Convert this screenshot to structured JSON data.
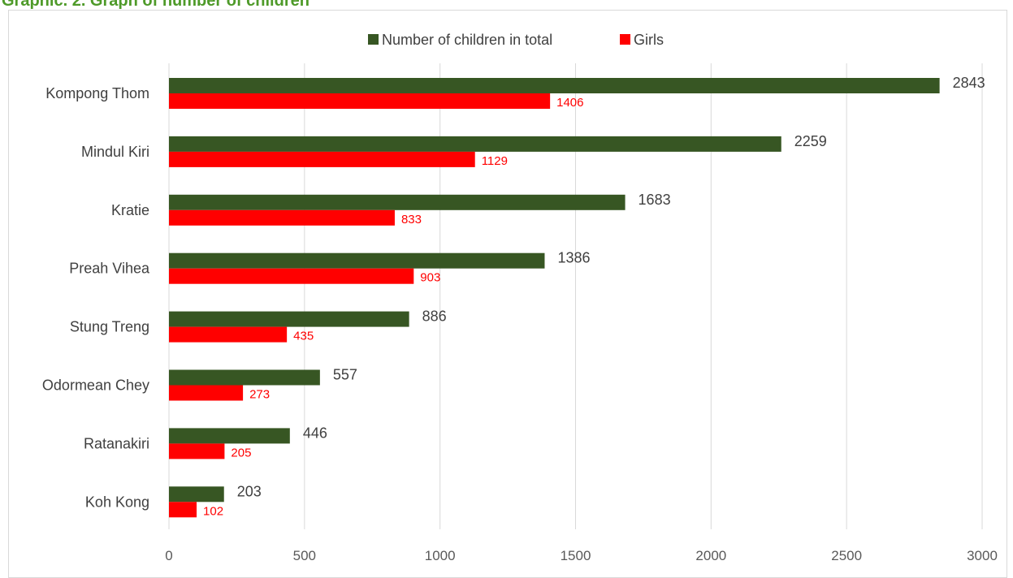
{
  "page": {
    "title": "Graphic. 2. Graph of number of children"
  },
  "colors": {
    "total": "#375623",
    "girls": "#ff0000",
    "grid": "#d9d9d9",
    "title": "#4e9a29"
  },
  "chart_data": {
    "type": "bar",
    "orientation": "horizontal",
    "categories": [
      "Kompong Thom",
      "Mindul Kiri",
      "Kratie",
      "Preah Vihea",
      "Stung Treng",
      "Odormean Chey",
      "Ratanakiri",
      "Koh Kong"
    ],
    "series": [
      {
        "name": "Number of children in total",
        "color": "#375623",
        "values": [
          2843,
          2259,
          1683,
          1386,
          886,
          557,
          446,
          203
        ]
      },
      {
        "name": "Girls",
        "color": "#ff0000",
        "values": [
          1406,
          1129,
          833,
          903,
          435,
          273,
          205,
          102
        ]
      }
    ],
    "xlim": [
      0,
      3000
    ],
    "xticks": [
      0,
      500,
      1000,
      1500,
      2000,
      2500,
      3000
    ],
    "grid": true,
    "legend": "top-center",
    "data_labels": true
  }
}
